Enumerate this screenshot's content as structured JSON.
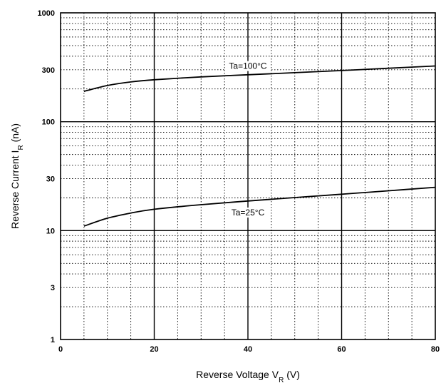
{
  "chart_data": {
    "type": "line",
    "xlabel": "Reverse Voltage V",
    "xlabel_sub": "R",
    "xlabel_unit": " (V)",
    "ylabel": "Reverse Current I",
    "ylabel_sub": "R",
    "ylabel_unit": " (nA)",
    "xlim": [
      0,
      80
    ],
    "ylim": [
      1,
      1000
    ],
    "yscale": "log",
    "x_ticks": [
      0,
      20,
      40,
      60,
      80
    ],
    "x_tick_labels": [
      "0",
      "20",
      "40",
      "60",
      "80"
    ],
    "y_ticks": [
      1,
      3,
      10,
      30,
      100,
      300,
      1000
    ],
    "y_tick_labels": [
      "1",
      "3",
      "10",
      "30",
      "100",
      "300",
      "1000"
    ],
    "grid": true,
    "series": [
      {
        "x": [
          5,
          10,
          15,
          20,
          30,
          40,
          50,
          60,
          70,
          80
        ],
        "y": [
          190,
          215,
          232,
          243,
          258,
          270,
          282,
          295,
          310,
          325
        ]
      },
      {
        "x": [
          5,
          10,
          15,
          20,
          30,
          40,
          50,
          60,
          70,
          80
        ],
        "y": [
          11,
          13,
          14.5,
          15.7,
          17.3,
          18.7,
          20.1,
          21.6,
          23.2,
          25
        ]
      }
    ],
    "annotations": [
      {
        "text": "Ta=100°C",
        "x": 40,
        "y": 310
      },
      {
        "text": "Ta=25°C",
        "x": 40,
        "y": 14
      }
    ]
  }
}
